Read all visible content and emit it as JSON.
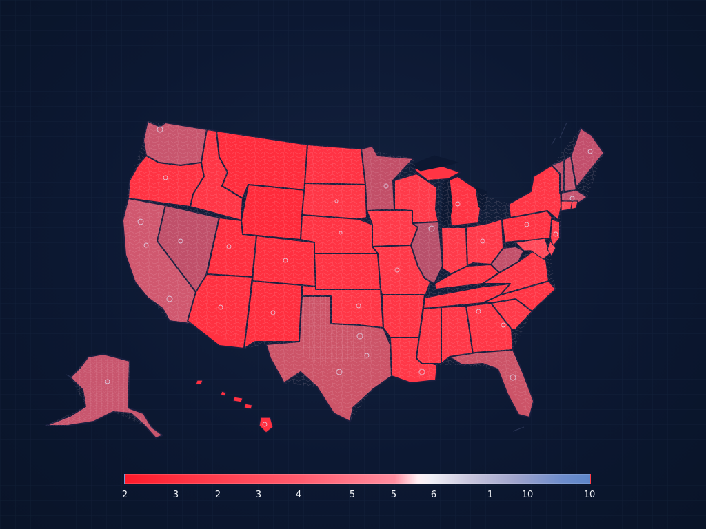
{
  "colors": {
    "background": "#0b1730",
    "high_value": "#ff2b3b",
    "mid_value": "#d65a6e",
    "low_value": "#5d86c9",
    "state_border": "#1a1f3f"
  },
  "legend": {
    "type": "color-scale",
    "ticks": [
      "2",
      "3",
      "2",
      "3",
      "4",
      "5",
      "5",
      "6",
      "1",
      "10",
      "10"
    ]
  },
  "map": {
    "region": "United States",
    "inset_regions": [
      "Alaska",
      "Hawaii"
    ]
  }
}
